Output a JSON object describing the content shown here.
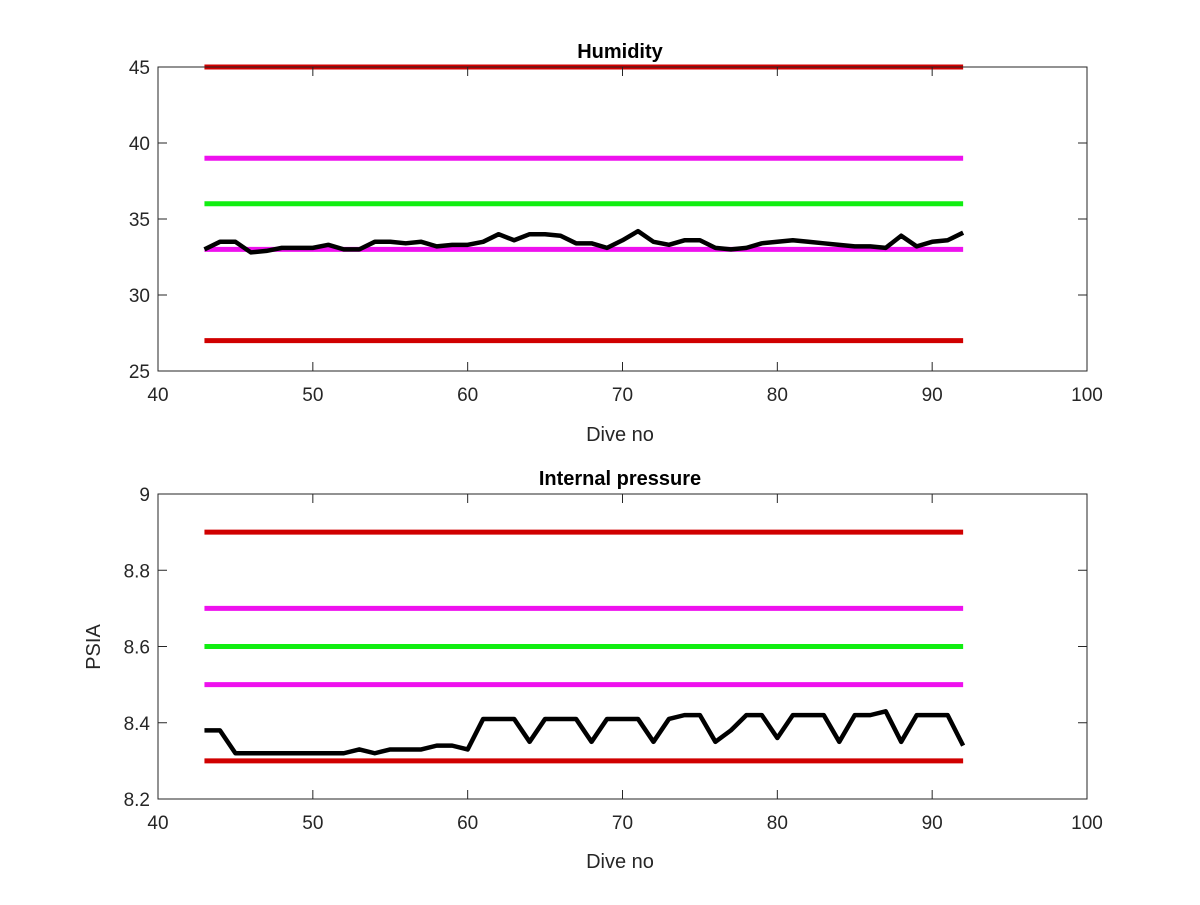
{
  "colors": {
    "background": "#ffffff",
    "axes": "#262626",
    "limit_red": "#d00000",
    "limit_magenta": "#ee11ee",
    "limit_green": "#11ee11",
    "data": "#000000"
  },
  "chart_data": [
    {
      "type": "line",
      "title": "Humidity",
      "xlabel": "Dive no",
      "ylabel": "",
      "xlim": [
        40,
        100
      ],
      "ylim": [
        25,
        45
      ],
      "xticks": [
        "40",
        "50",
        "60",
        "70",
        "80",
        "90",
        "100"
      ],
      "yticks": [
        "25",
        "30",
        "35",
        "40",
        "45"
      ],
      "grid": false,
      "limit_lines": [
        {
          "y": 45,
          "x": [
            43,
            92
          ],
          "color": "red"
        },
        {
          "y": 39,
          "x": [
            43,
            92
          ],
          "color": "magenta"
        },
        {
          "y": 36,
          "x": [
            43,
            92
          ],
          "color": "green"
        },
        {
          "y": 33,
          "x": [
            43,
            92
          ],
          "color": "magenta"
        },
        {
          "y": 27,
          "x": [
            43,
            92
          ],
          "color": "red"
        }
      ],
      "series": [
        {
          "x": [
            43,
            44,
            45,
            46,
            47,
            48,
            49,
            50,
            51,
            52,
            53,
            54,
            55,
            56,
            57,
            58,
            59,
            60,
            61,
            62,
            63,
            64,
            65,
            66,
            67,
            68,
            69,
            70,
            71,
            72,
            73,
            74,
            75,
            76,
            77,
            78,
            79,
            80,
            81,
            82,
            83,
            84,
            85,
            86,
            87,
            88,
            89,
            90,
            91,
            92
          ],
          "values": [
            33.0,
            33.5,
            33.5,
            32.8,
            32.9,
            33.1,
            33.1,
            33.1,
            33.3,
            33.0,
            33.0,
            33.5,
            33.5,
            33.4,
            33.5,
            33.2,
            33.3,
            33.3,
            33.5,
            34.0,
            33.6,
            34.0,
            34.0,
            33.9,
            33.4,
            33.4,
            33.1,
            33.6,
            34.2,
            33.5,
            33.3,
            33.6,
            33.6,
            33.1,
            33.0,
            33.1,
            33.4,
            33.5,
            33.6,
            33.5,
            33.4,
            33.3,
            33.2,
            33.2,
            33.1,
            33.9,
            33.2,
            33.5,
            33.6,
            34.1
          ]
        }
      ]
    },
    {
      "type": "line",
      "title": "Internal pressure",
      "xlabel": "Dive no",
      "ylabel": "PSIA",
      "xlim": [
        40,
        100
      ],
      "ylim": [
        8.2,
        9
      ],
      "xticks": [
        "40",
        "50",
        "60",
        "70",
        "80",
        "90",
        "100"
      ],
      "yticks": [
        "8.2",
        "8.4",
        "8.6",
        "8.8",
        "9"
      ],
      "grid": false,
      "limit_lines": [
        {
          "y": 8.9,
          "x": [
            43,
            92
          ],
          "color": "red"
        },
        {
          "y": 8.7,
          "x": [
            43,
            92
          ],
          "color": "magenta"
        },
        {
          "y": 8.6,
          "x": [
            43,
            92
          ],
          "color": "green"
        },
        {
          "y": 8.5,
          "x": [
            43,
            92
          ],
          "color": "magenta"
        },
        {
          "y": 8.3,
          "x": [
            43,
            92
          ],
          "color": "red"
        }
      ],
      "series": [
        {
          "x": [
            43,
            44,
            45,
            46,
            47,
            48,
            49,
            50,
            51,
            52,
            53,
            54,
            55,
            56,
            57,
            58,
            59,
            60,
            61,
            62,
            63,
            64,
            65,
            66,
            67,
            68,
            69,
            70,
            71,
            72,
            73,
            74,
            75,
            76,
            77,
            78,
            79,
            80,
            81,
            82,
            83,
            84,
            85,
            86,
            87,
            88,
            89,
            90,
            91,
            92
          ],
          "values": [
            8.38,
            8.38,
            8.32,
            8.32,
            8.32,
            8.32,
            8.32,
            8.32,
            8.32,
            8.32,
            8.33,
            8.32,
            8.33,
            8.33,
            8.33,
            8.34,
            8.34,
            8.33,
            8.41,
            8.41,
            8.41,
            8.35,
            8.41,
            8.41,
            8.41,
            8.35,
            8.41,
            8.41,
            8.41,
            8.35,
            8.41,
            8.42,
            8.42,
            8.35,
            8.38,
            8.42,
            8.42,
            8.36,
            8.42,
            8.42,
            8.42,
            8.35,
            8.42,
            8.42,
            8.43,
            8.35,
            8.42,
            8.42,
            8.42,
            8.34
          ]
        }
      ]
    }
  ]
}
